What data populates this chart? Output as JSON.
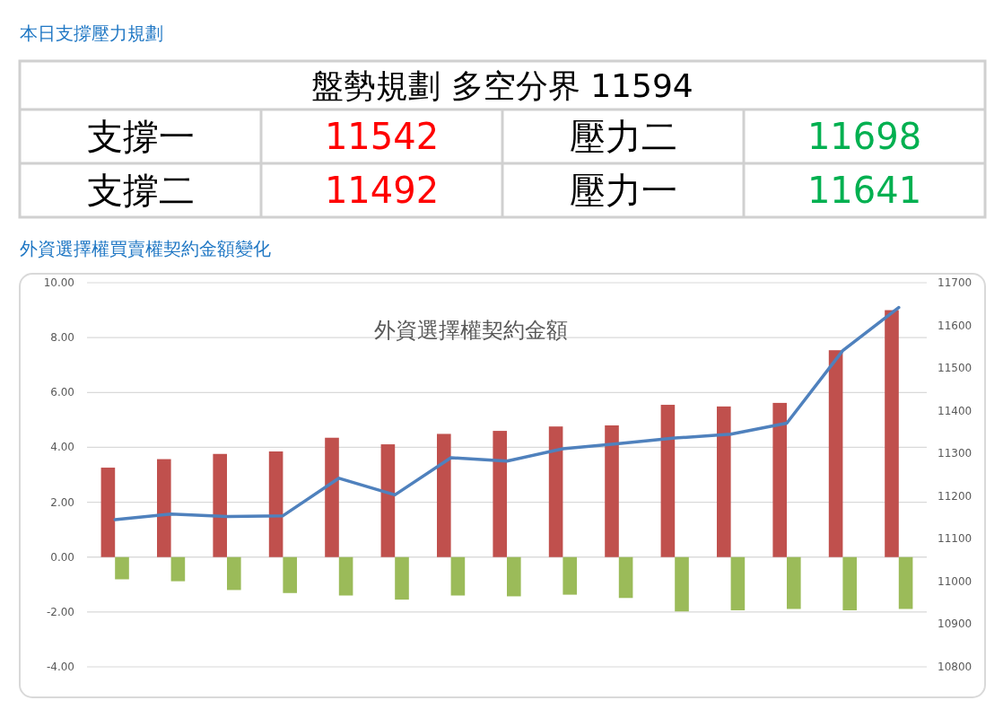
{
  "chart_data": [
    {
      "type": "other",
      "title": "本日支撐壓力規劃",
      "subtitle": "盤勢規劃 多空分界 11594",
      "categories": [
        "支撐一",
        "壓力二",
        "支撐二",
        "壓力一"
      ],
      "values": [
        11542,
        11698,
        11492,
        11641
      ],
      "colors": [
        "#ff0000",
        "#00b050",
        "#ff0000",
        "#00b050"
      ],
      "data_labels": true
    },
    {
      "type": "bar",
      "title": "外資選擇權買賣權契約金額變化",
      "subtitle": "外資選擇權契約金額",
      "categories": [
        null,
        null,
        null,
        null,
        null,
        null,
        null,
        null,
        null,
        null,
        null,
        null,
        null,
        null,
        null
      ],
      "series": [
        {
          "color": "#c0504d",
          "values": [
            3.26,
            3.57,
            3.76,
            3.85,
            4.35,
            4.11,
            4.49,
            4.6,
            4.76,
            4.8,
            5.55,
            5.49,
            5.62,
            7.54,
            9.0
          ]
        },
        {
          "color": "#9bbb59",
          "values": [
            -0.81,
            -0.88,
            -1.2,
            -1.31,
            -1.4,
            -1.55,
            -1.4,
            -1.43,
            -1.37,
            -1.49,
            -1.98,
            -1.94,
            -1.89,
            -1.94,
            -1.89
          ]
        },
        {
          "type": "line",
          "axis": "y2",
          "color": "#4f81bd",
          "values": [
            11145,
            11158,
            11152,
            11154,
            11242,
            11203,
            11290,
            11282,
            11311,
            11323,
            11336,
            11345,
            11371,
            11541,
            11642
          ]
        }
      ],
      "ylim": [
        -4,
        10
      ],
      "yticks": [
        {
          "value": -4,
          "label": "-4.00"
        },
        {
          "value": -2,
          "label": "-2.00"
        },
        {
          "value": 0,
          "label": "0.00"
        },
        {
          "value": 2,
          "label": "2.00"
        },
        {
          "value": 4,
          "label": "4.00"
        },
        {
          "value": 6,
          "label": "6.00"
        },
        {
          "value": 8,
          "label": "8.00"
        },
        {
          "value": 10,
          "label": "10.00"
        }
      ],
      "y2lim": [
        10800,
        11700
      ],
      "y2ticks": [
        10800,
        10900,
        11000,
        11100,
        11200,
        11300,
        11400,
        11500,
        11600,
        11700
      ],
      "grid": "y",
      "marker": "none",
      "line_style": "solid"
    }
  ]
}
